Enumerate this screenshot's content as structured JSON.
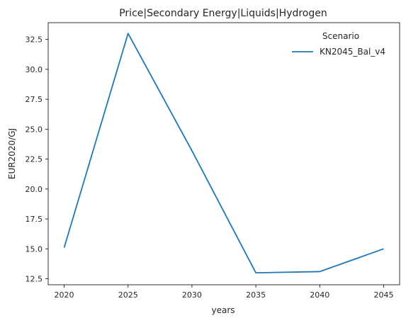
{
  "chart_data": {
    "type": "line",
    "title": "Price|Secondary Energy|Liquids|Hydrogen",
    "xlabel": "years",
    "ylabel": "EUR2020/GJ",
    "x": [
      2020,
      2025,
      2030,
      2035,
      2040,
      2045
    ],
    "series": [
      {
        "name": "KN2045_Bal_v4",
        "color": "#1f77b4",
        "values": [
          15.1,
          33.0,
          23.2,
          13.0,
          13.1,
          15.0
        ]
      }
    ],
    "xticks": [
      "2020",
      "2025",
      "2030",
      "2035",
      "2040",
      "2045"
    ],
    "yticks": [
      "12.5",
      "15.0",
      "17.5",
      "20.0",
      "22.5",
      "25.0",
      "27.5",
      "30.0",
      "32.5"
    ],
    "xlim": [
      2018.75,
      2046.25
    ],
    "ylim": [
      12.0,
      33.9
    ],
    "grid": false,
    "legend": {
      "title": "Scenario",
      "placement": "top-right"
    }
  }
}
